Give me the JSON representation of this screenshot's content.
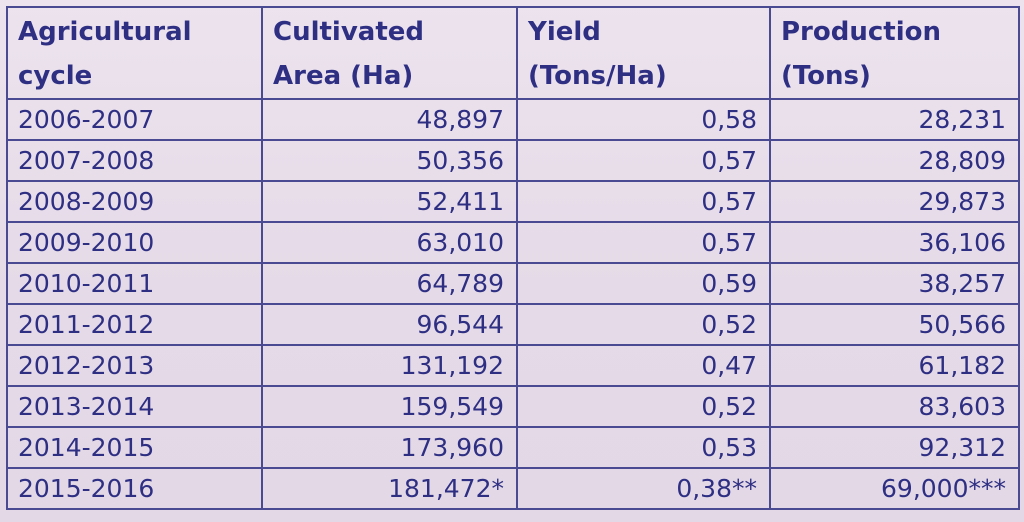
{
  "table": {
    "headers": [
      [
        "Agricultural",
        "cycle"
      ],
      [
        "Cultivated",
        "Area (Ha)"
      ],
      [
        "Yield",
        "(Tons/Ha)"
      ],
      [
        "Production",
        "(Tons)"
      ]
    ],
    "rows": [
      [
        "2006-2007",
        "48,897",
        "0,58",
        "28,231"
      ],
      [
        "2007-2008",
        "50,356",
        "0,57",
        "28,809"
      ],
      [
        "2008-2009",
        "52,411",
        "0,57",
        "29,873"
      ],
      [
        "2009-2010",
        "63,010",
        "0,57",
        "36,106"
      ],
      [
        "2010-2011",
        "64,789",
        "0,59",
        "38,257"
      ],
      [
        "2011-2012",
        "96,544",
        "0,52",
        "50,566"
      ],
      [
        "2012-2013",
        "131,192",
        "0,47",
        "61,182"
      ],
      [
        "2013-2014",
        "159,549",
        "0,52",
        "83,603"
      ],
      [
        "2014-2015",
        "173,960",
        "0,53",
        "92,312"
      ],
      [
        "2015-2016",
        "181,472*",
        "0,38**",
        "69,000***"
      ]
    ]
  },
  "colors": {
    "text": "#2e2f83",
    "border": "#4a4a92",
    "paper": "#e6dde8"
  }
}
